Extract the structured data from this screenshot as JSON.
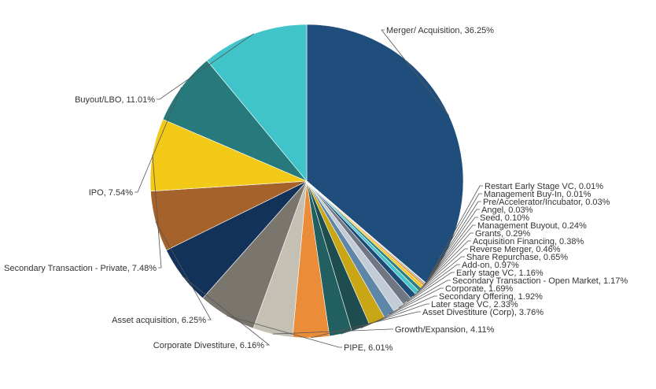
{
  "chart_data": {
    "type": "pie",
    "title": "",
    "start_angle_deg": 90,
    "direction": "clockwise",
    "slices": [
      {
        "label": "Merger/ Acquisition, 36.25%",
        "value": 36.25,
        "color": "#1f4e7d"
      },
      {
        "label": "Restart Early Stage VC, 0.01%",
        "value": 0.01,
        "color": "#4f6478"
      },
      {
        "label": "Management Buy-In, 0.01%",
        "value": 0.01,
        "color": "#a06a3a"
      },
      {
        "label": "Pre/Accelerator/Incubator, 0.03%",
        "value": 0.03,
        "color": "#8a8276"
      },
      {
        "label": "Angel, 0.03%",
        "value": 0.03,
        "color": "#c9a23a"
      },
      {
        "label": "Seed, 0.10%",
        "value": 0.1,
        "color": "#183a66"
      },
      {
        "label": "Management Buyout, 0.24%",
        "value": 0.24,
        "color": "#e89a3c"
      },
      {
        "label": "Grants, 0.29%",
        "value": 0.29,
        "color": "#f2c418"
      },
      {
        "label": "Acquisition Financing, 0.38%",
        "value": 0.38,
        "color": "#2e7f82"
      },
      {
        "label": "Reverse Merger, 0.46%",
        "value": 0.46,
        "color": "#48c5cb"
      },
      {
        "label": "Share Repurchase, 0.65%",
        "value": 0.65,
        "color": "#1e4a78"
      },
      {
        "label": "Add-on, 0.97%",
        "value": 0.97,
        "color": "#707782"
      },
      {
        "label": "Early stage VC, 1.16%",
        "value": 1.16,
        "color": "#c3ccd6"
      },
      {
        "label": "Secondary Transaction - Open Market, 1.17%",
        "value": 1.17,
        "color": "#5d86a8"
      },
      {
        "label": "Corporate, 1.69%",
        "value": 1.69,
        "color": "#c8a616"
      },
      {
        "label": "Secondary Offering, 1.92%",
        "value": 1.92,
        "color": "#1e4d4f"
      },
      {
        "label": "Later stage VC, 2.33%",
        "value": 2.33,
        "color": "#215f60"
      },
      {
        "label": "Asset Divestiture (Corp), 3.76%",
        "value": 3.76,
        "color": "#ea8c38"
      },
      {
        "label": "Growth/Expansion, 4.11%",
        "value": 4.11,
        "color": "#c4c1b4"
      },
      {
        "label": "PIPE, 6.01%",
        "value": 6.01,
        "color": "#7a766e"
      },
      {
        "label": "Corporate Divestiture, 6.16%",
        "value": 6.16,
        "color": "#12325a"
      },
      {
        "label": "Asset acquisition, 6.25%",
        "value": 6.25,
        "color": "#a5622a"
      },
      {
        "label": "Secondary Transaction - Private, 7.48%",
        "value": 7.48,
        "color": "#f3c918"
      },
      {
        "label": "IPO, 7.54%",
        "value": 7.54,
        "color": "#277a7b"
      },
      {
        "label": "Buyout/LBO, 11.01%",
        "value": 11.01,
        "color": "#40c4ca"
      }
    ]
  }
}
